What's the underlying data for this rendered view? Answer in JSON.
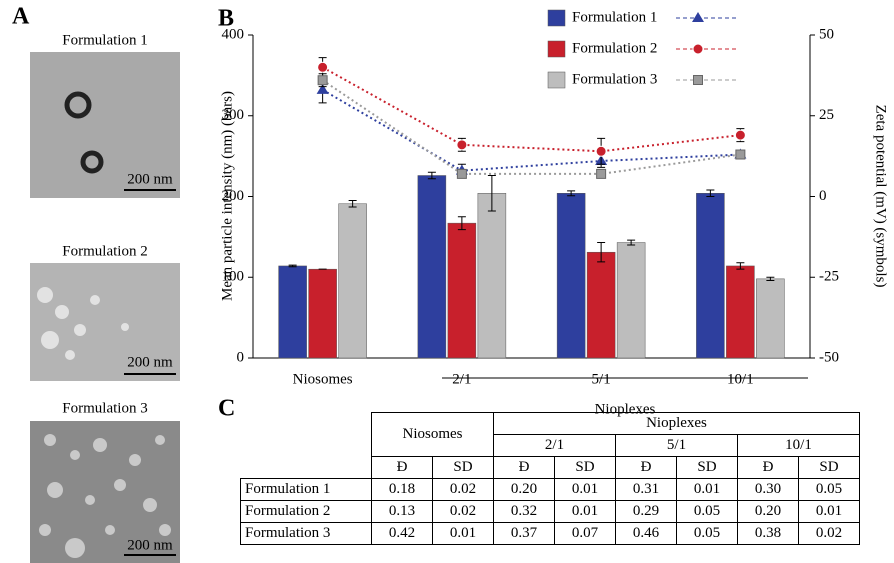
{
  "panel_a": {
    "label": "A",
    "images": [
      {
        "title": "Formulation 1",
        "scale_bar": "200 nm"
      },
      {
        "title": "Formulation 2",
        "scale_bar": "200 nm"
      },
      {
        "title": "Formulation 3",
        "scale_bar": "200 nm"
      }
    ]
  },
  "chart_data": {
    "type": "bar",
    "panel_label": "B",
    "categories": [
      "Niosomes",
      "2/1",
      "5/1",
      "10/1"
    ],
    "group_label": "Nioplexes",
    "ylabel": "Mean particle intensity (nm) (bars)",
    "y2label": "Zeta potential (mV) (symbols)",
    "ylim": [
      0,
      400
    ],
    "yticks": [
      0,
      100,
      200,
      300,
      400
    ],
    "y2lim": [
      -50,
      50
    ],
    "y2ticks": [
      -50,
      -25,
      0,
      25,
      50
    ],
    "series": [
      {
        "name": "Formulation 1",
        "color": "#2e3f9e",
        "values": [
          114,
          226,
          204,
          204
        ],
        "errors": [
          1,
          4,
          3,
          4
        ],
        "zeta": {
          "axis": "y2",
          "marker": "triangle",
          "color": "#2e3f9e",
          "values": [
            33,
            8,
            11,
            13
          ],
          "errors": [
            4,
            2,
            2,
            1
          ]
        }
      },
      {
        "name": "Formulation 2",
        "color": "#c8202c",
        "values": [
          110,
          167,
          131,
          114
        ],
        "errors": [
          0,
          8,
          12,
          4
        ],
        "zeta": {
          "axis": "y2",
          "marker": "circle",
          "color": "#c8202c",
          "values": [
            40,
            16,
            14,
            19
          ],
          "errors": [
            3,
            2,
            4,
            2
          ]
        }
      },
      {
        "name": "Formulation 3",
        "color": "#bdbdbd",
        "values": [
          191,
          204,
          143,
          98
        ],
        "errors": [
          4,
          22,
          3,
          2
        ],
        "zeta": {
          "axis": "y2",
          "marker": "square",
          "color": "#9a9a9a",
          "values": [
            36,
            7,
            7,
            13
          ],
          "errors": [
            2,
            1,
            1,
            1
          ]
        }
      }
    ]
  },
  "panel_c": {
    "label": "C",
    "table": {
      "header": {
        "niosomes": "Niosomes",
        "nioplexes": "Nioplexes",
        "ratios": [
          "2/1",
          "5/1",
          "10/1"
        ],
        "subheaders": [
          "Đ",
          "SD"
        ]
      },
      "rows": [
        {
          "label": "Formulation 1",
          "cells": [
            "0.18",
            "0.02",
            "0.20",
            "0.01",
            "0.31",
            "0.01",
            "0.30",
            "0.05"
          ]
        },
        {
          "label": "Formulation 2",
          "cells": [
            "0.13",
            "0.02",
            "0.32",
            "0.01",
            "0.29",
            "0.05",
            "0.20",
            "0.01"
          ]
        },
        {
          "label": "Formulation 3",
          "cells": [
            "0.42",
            "0.01",
            "0.37",
            "0.07",
            "0.46",
            "0.05",
            "0.38",
            "0.02"
          ]
        }
      ]
    }
  }
}
